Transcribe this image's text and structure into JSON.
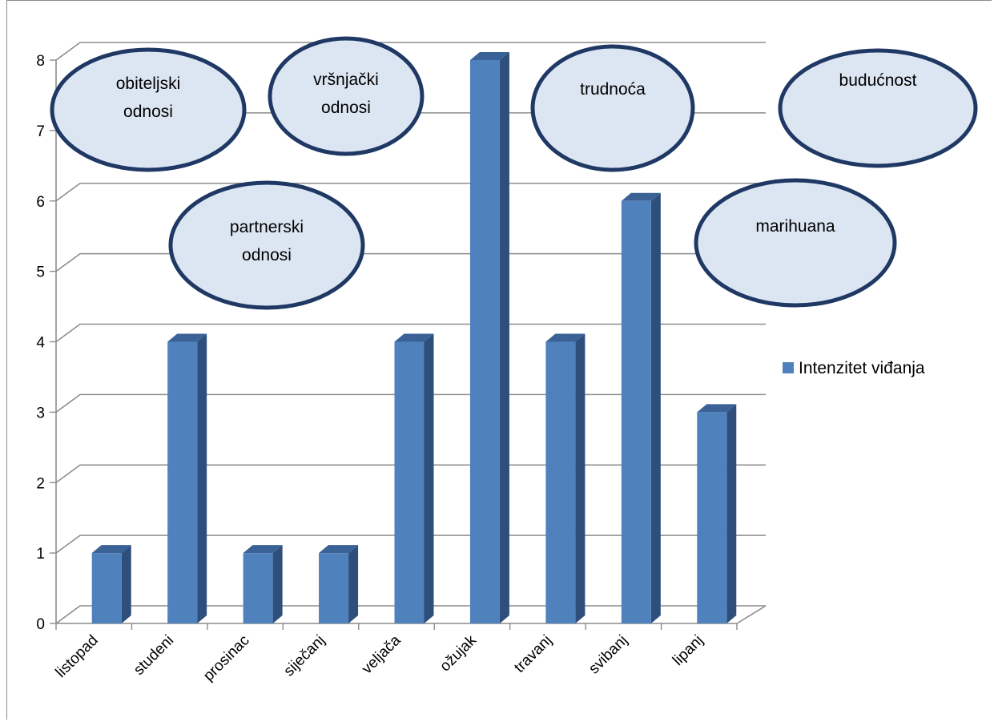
{
  "chart_data": {
    "type": "bar",
    "categories": [
      "listopad",
      "studeni",
      "prosinac",
      "siječanj",
      "veljača",
      "ožujak",
      "travanj",
      "svibanj",
      "lipanj"
    ],
    "series": [
      {
        "name": "Intenzitet viđanja",
        "values": [
          1,
          4,
          1,
          1,
          4,
          8,
          4,
          6,
          3
        ],
        "color": "#4f81bd"
      }
    ],
    "ylim": [
      0,
      8
    ],
    "yticks": [
      0,
      1,
      2,
      3,
      4,
      5,
      6,
      7,
      8
    ],
    "grid": true,
    "legend_position": "right",
    "annotations": [
      {
        "id": "obiteljski",
        "lines": [
          "obiteljski",
          "odnosi"
        ]
      },
      {
        "id": "vrsnjacki",
        "lines": [
          "vršnjački",
          "odnosi"
        ]
      },
      {
        "id": "trudnoca",
        "lines": [
          "trudnoća"
        ]
      },
      {
        "id": "buducnost",
        "lines": [
          "budućnost"
        ]
      },
      {
        "id": "partnerski",
        "lines": [
          "partnerski",
          "odnosi"
        ]
      },
      {
        "id": "marihuana",
        "lines": [
          "marihuana"
        ]
      }
    ],
    "annotation_fill": "#dce6f2",
    "annotation_stroke": "#1f3864"
  }
}
